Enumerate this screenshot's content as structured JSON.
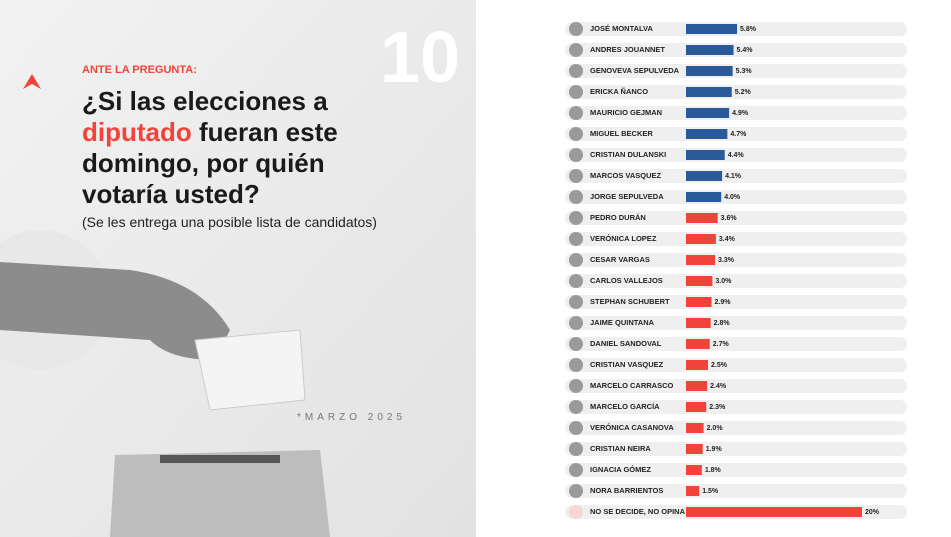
{
  "header": {
    "number": "10",
    "kicker": "ANTE LA PREGUNTA:",
    "title_lines": [
      "¿Si las elecciones a",
      "diputado",
      "fueran este",
      "domingo, por quién",
      "votaría usted?"
    ],
    "subtitle": "(Se les entrega una posible lista de candidatos)",
    "date": "*MARZO 2025"
  },
  "chart_data": {
    "type": "hbar",
    "categories": [
      "JOSÉ MONTALVA",
      "ANDRES JOUANNET",
      "GENOVEVA SEPULVEDA",
      "ERICKA ÑANCO",
      "MAURICIO GEJMAN",
      "MIGUEL BECKER",
      "CRISTIAN DULANSKI",
      "MARCOS VASQUEZ",
      "JORGE SEPULVEDA",
      "PEDRO DURÁN",
      "VERÓNICA LOPEZ",
      "CESAR VARGAS",
      "CARLOS VALLEJOS",
      "STEPHAN SCHUBERT",
      "JAIME QUINTANA",
      "DANIEL SANDOVAL",
      "CRISTIAN VASQUEZ",
      "MARCELO CARRASCO",
      "MARCELO GARCÍA",
      "VERÓNICA CASANOVA",
      "CRISTIAN NEIRA",
      "IGNACIA GÓMEZ",
      "NORA BARRIENTOS",
      "NO SE DECIDE, NO OPINA"
    ],
    "values": [
      5.8,
      5.4,
      5.3,
      5.2,
      4.9,
      4.7,
      4.4,
      4.1,
      4.0,
      3.6,
      3.4,
      3.3,
      3.0,
      2.9,
      2.8,
      2.7,
      2.5,
      2.4,
      2.3,
      2.0,
      1.9,
      1.8,
      1.5,
      20
    ],
    "value_labels": [
      "5.8%",
      "5.4%",
      "5.3%",
      "5.2%",
      "4.9%",
      "4.7%",
      "4.4%",
      "4.1%",
      "4.0%",
      "3.6%",
      "3.4%",
      "3.3%",
      "3.0%",
      "2.9%",
      "2.8%",
      "2.7%",
      "2.5%",
      "2.4%",
      "2.3%",
      "2.0%",
      "1.9%",
      "1.8%",
      "1.5%",
      "20%"
    ],
    "colors": [
      "#2a5a9a",
      "#2a5a9a",
      "#2a5a9a",
      "#2a5a9a",
      "#2a5a9a",
      "#2a5a9a",
      "#2a5a9a",
      "#2a5a9a",
      "#2a5a9a",
      "#f2433a",
      "#f2433a",
      "#f2433a",
      "#f2433a",
      "#f2433a",
      "#f2433a",
      "#f2433a",
      "#f2433a",
      "#f2433a",
      "#f2433a",
      "#f2433a",
      "#f2433a",
      "#f2433a",
      "#f2433a",
      "#f2433a"
    ]
  }
}
